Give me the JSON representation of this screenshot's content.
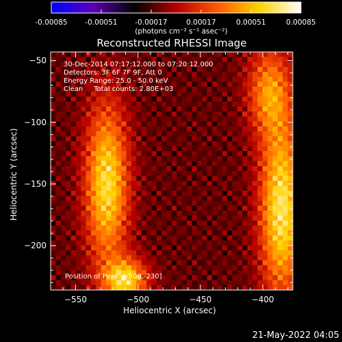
{
  "colorbar": {
    "tick_labels": [
      "-0.00085",
      "-0.00051",
      "-0.00017",
      "0.00017",
      "0.00051",
      "0.00085"
    ],
    "tick_values": [
      -0.00085,
      -0.00051,
      -0.00017,
      0.00017,
      0.00051,
      0.00085
    ],
    "range": [
      -0.00085,
      0.00085
    ],
    "units_label": "(photons cm⁻² s⁻¹ asec⁻²)",
    "colors": [
      "#0000ff",
      "#5a00b4",
      "#000000",
      "#b40000",
      "#ff5a00",
      "#ffd200",
      "#ffffff"
    ]
  },
  "chart_data": {
    "type": "heatmap",
    "title": "Reconstructed RHESSI Image",
    "xlabel": "Heliocentric X (arcsec)",
    "ylabel": "Heliocentric Y (arcsec)",
    "xlim": [
      -570,
      -376
    ],
    "ylim": [
      -236,
      -43
    ],
    "x_ticks": [
      -550,
      -500,
      -450,
      -400
    ],
    "x_tick_labels": [
      "−550",
      "−500",
      "−450",
      "−400"
    ],
    "y_ticks": [
      -50,
      -100,
      -150,
      -200
    ],
    "y_tick_labels": [
      "−50",
      "−100",
      "−150",
      "−200"
    ],
    "annotations": [
      "30-Dec-2014 07:17:12.000 to 07:20:12.000",
      "Detectors: 3F 6F 7F 9F, Att 0",
      "Energy Range: 25.0 - 50.0 keV",
      "Clean     Total counts: 2.80E+03"
    ],
    "peak_label": "Position of Peak: [-508,-230]",
    "peak_position": [
      -508,
      -230
    ],
    "sources": [
      {
        "x": -525,
        "y": -150,
        "sx": 12,
        "sy": 45,
        "amp": 0.9
      },
      {
        "x": -510,
        "y": -228,
        "sx": 12,
        "sy": 12,
        "amp": 0.85
      },
      {
        "x": -385,
        "y": -170,
        "sx": 12,
        "sy": 50,
        "amp": 0.95
      },
      {
        "x": -395,
        "y": -75,
        "sx": 12,
        "sy": 25,
        "amp": 0.6
      }
    ],
    "background_level": -0.15
  },
  "footer": {
    "date": "21-May-2022 04:05"
  }
}
